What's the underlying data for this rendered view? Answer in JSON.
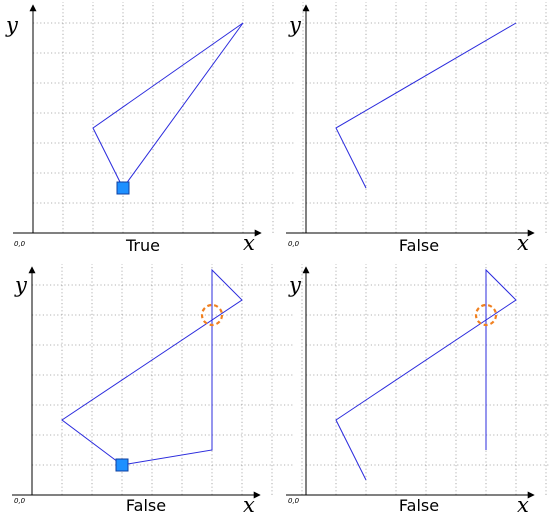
{
  "colors": {
    "polyline": "#2b2bdd",
    "grid": "#9a9a9a",
    "axis": "#000000",
    "start_marker_fill": "#1e90ff",
    "start_marker_stroke": "#1040a0",
    "intersection_marker": "#f08020"
  },
  "axis_labels": {
    "x": "x",
    "y": "y",
    "origin": "0,0"
  },
  "panels": [
    {
      "caption": "True",
      "closed": true,
      "points": [
        [
          2,
          3.5
        ],
        [
          7,
          7
        ],
        [
          3,
          1.5
        ]
      ],
      "start_marker": [
        3,
        1.5
      ],
      "intersection_marker": null
    },
    {
      "caption": "False",
      "closed": false,
      "points": [
        [
          7,
          7
        ],
        [
          1,
          3.5
        ],
        [
          2,
          1.5
        ]
      ],
      "start_marker": null,
      "intersection_marker": null
    },
    {
      "caption": "False",
      "closed": true,
      "points": [
        [
          3,
          1
        ],
        [
          6,
          1.5
        ],
        [
          6,
          7.5
        ],
        [
          7,
          6.5
        ],
        [
          1,
          2.5
        ]
      ],
      "start_marker": [
        3,
        1
      ],
      "intersection_marker": [
        6,
        6
      ]
    },
    {
      "caption": "False",
      "closed": false,
      "points": [
        [
          6,
          1.5
        ],
        [
          6,
          7.5
        ],
        [
          7,
          6.5
        ],
        [
          1,
          2.5
        ],
        [
          2,
          0.5
        ]
      ],
      "start_marker": null,
      "intersection_marker": [
        6,
        6
      ]
    }
  ]
}
